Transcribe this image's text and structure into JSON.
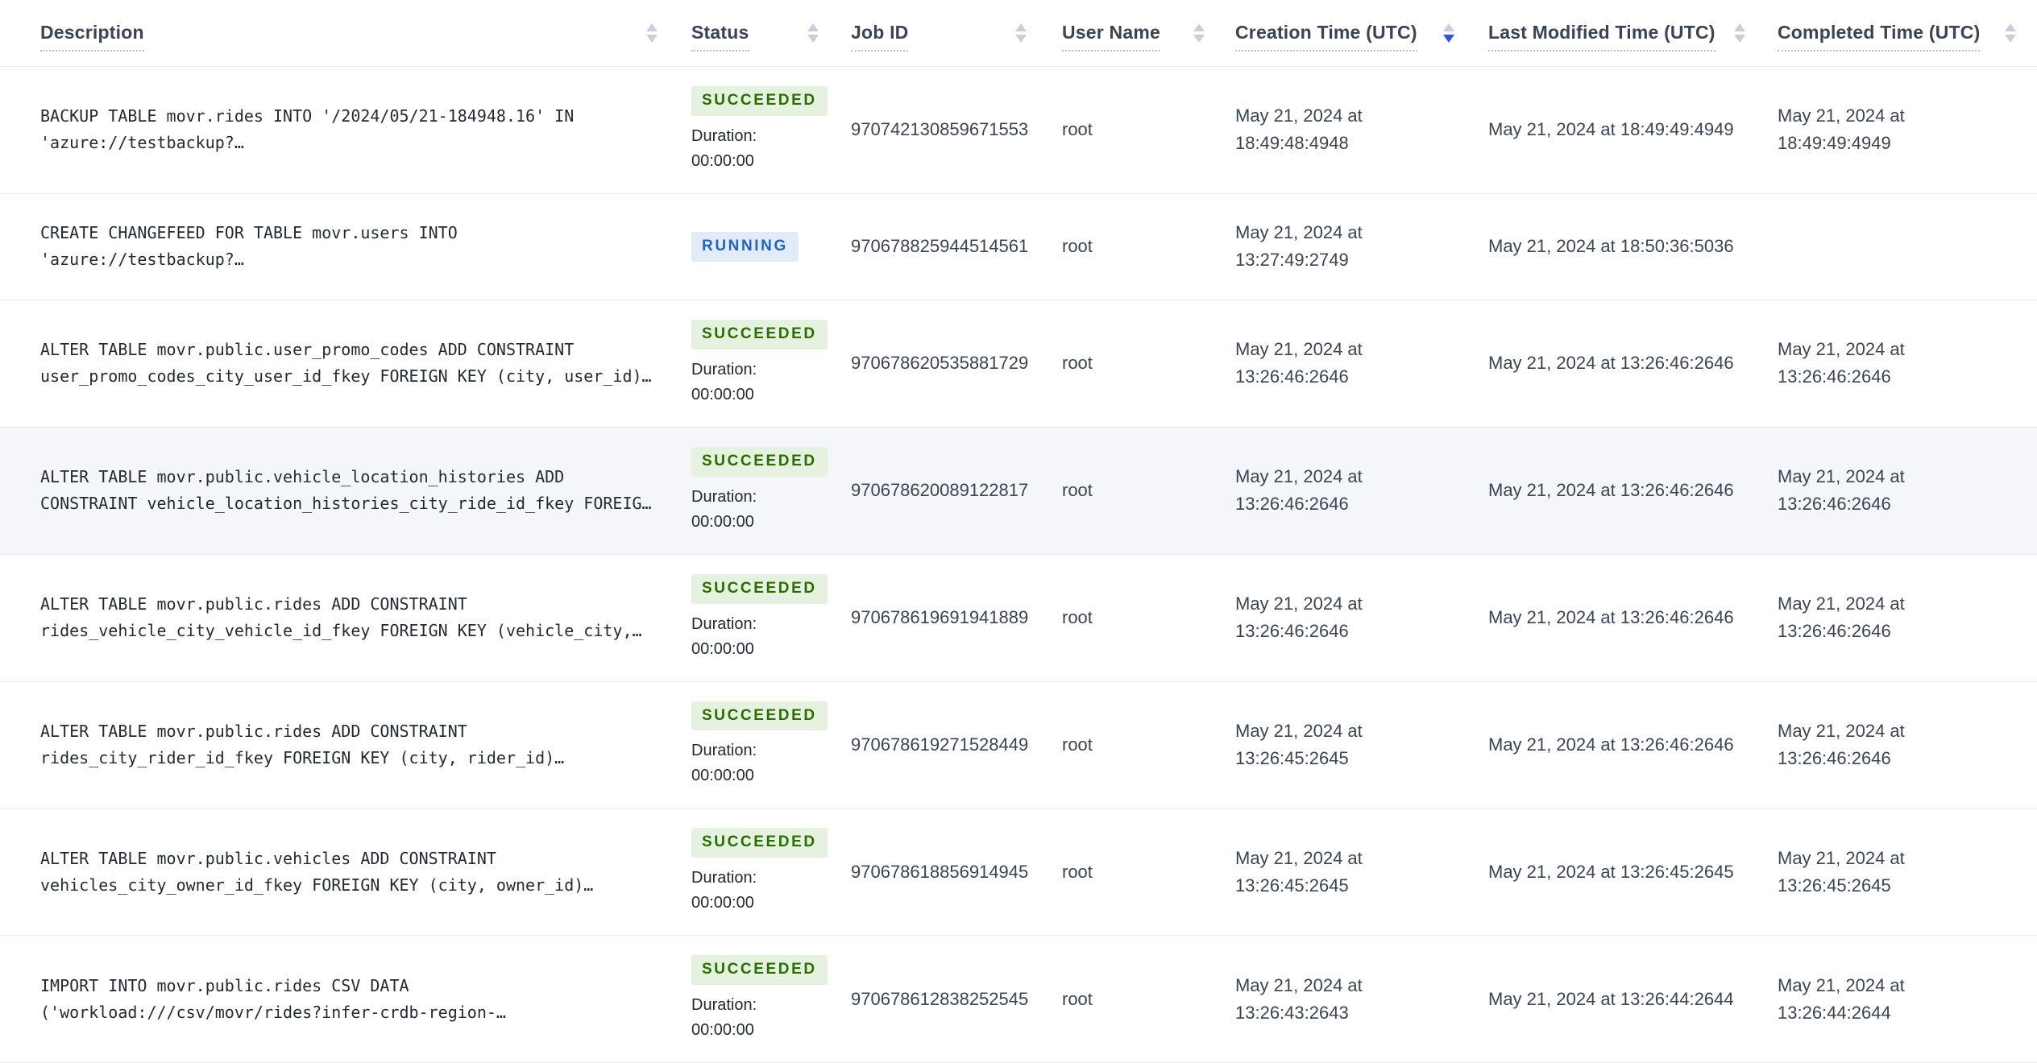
{
  "table": {
    "columns": [
      {
        "label": "Description",
        "sort": "none"
      },
      {
        "label": "Status",
        "sort": "none"
      },
      {
        "label": "Job ID",
        "sort": "none"
      },
      {
        "label": "User Name",
        "sort": "none"
      },
      {
        "label": "Creation Time (UTC)",
        "sort": "desc"
      },
      {
        "label": "Last Modified Time (UTC)",
        "sort": "none"
      },
      {
        "label": "Completed Time (UTC)",
        "sort": "none"
      }
    ],
    "rows": [
      {
        "description": "BACKUP TABLE movr.rides INTO '/2024/05/21-184948.16' IN 'azure://testbackup?…",
        "status": "SUCCEEDED",
        "duration_label": "Duration:",
        "duration_value": "00:00:00",
        "job_id": "970742130859671553",
        "user_name": "root",
        "creation_time": "May 21, 2024 at 18:49:48:4948",
        "last_modified_time": "May 21, 2024 at 18:49:49:4949",
        "completed_time": "May 21, 2024 at 18:49:49:4949",
        "highlighted": false
      },
      {
        "description": "CREATE CHANGEFEED FOR TABLE movr.users INTO 'azure://testbackup?…",
        "status": "RUNNING",
        "duration_label": "",
        "duration_value": null,
        "job_id": "970678825944514561",
        "user_name": "root",
        "creation_time": "May 21, 2024 at 13:27:49:2749",
        "last_modified_time": "May 21, 2024 at 18:50:36:5036",
        "completed_time": "",
        "highlighted": false
      },
      {
        "description": "ALTER TABLE movr.public.user_promo_codes ADD CONSTRAINT user_promo_codes_city_user_id_fkey FOREIGN KEY (city, user_id)…",
        "status": "SUCCEEDED",
        "duration_label": "Duration:",
        "duration_value": "00:00:00",
        "job_id": "970678620535881729",
        "user_name": "root",
        "creation_time": "May 21, 2024 at 13:26:46:2646",
        "last_modified_time": "May 21, 2024 at 13:26:46:2646",
        "completed_time": "May 21, 2024 at 13:26:46:2646",
        "highlighted": false
      },
      {
        "description": "ALTER TABLE movr.public.vehicle_location_histories ADD CONSTRAINT vehicle_location_histories_city_ride_id_fkey FOREIG…",
        "status": "SUCCEEDED",
        "duration_label": "Duration:",
        "duration_value": "00:00:00",
        "job_id": "970678620089122817",
        "user_name": "root",
        "creation_time": "May 21, 2024 at 13:26:46:2646",
        "last_modified_time": "May 21, 2024 at 13:26:46:2646",
        "completed_time": "May 21, 2024 at 13:26:46:2646",
        "highlighted": true
      },
      {
        "description": "ALTER TABLE movr.public.rides ADD CONSTRAINT rides_vehicle_city_vehicle_id_fkey FOREIGN KEY (vehicle_city,…",
        "status": "SUCCEEDED",
        "duration_label": "Duration:",
        "duration_value": "00:00:00",
        "job_id": "970678619691941889",
        "user_name": "root",
        "creation_time": "May 21, 2024 at 13:26:46:2646",
        "last_modified_time": "May 21, 2024 at 13:26:46:2646",
        "completed_time": "May 21, 2024 at 13:26:46:2646",
        "highlighted": false
      },
      {
        "description": "ALTER TABLE movr.public.rides ADD CONSTRAINT rides_city_rider_id_fkey FOREIGN KEY (city, rider_id)…",
        "status": "SUCCEEDED",
        "duration_label": "Duration:",
        "duration_value": "00:00:00",
        "job_id": "970678619271528449",
        "user_name": "root",
        "creation_time": "May 21, 2024 at 13:26:45:2645",
        "last_modified_time": "May 21, 2024 at 13:26:46:2646",
        "completed_time": "May 21, 2024 at 13:26:46:2646",
        "highlighted": false
      },
      {
        "description": "ALTER TABLE movr.public.vehicles ADD CONSTRAINT vehicles_city_owner_id_fkey FOREIGN KEY (city, owner_id)…",
        "status": "SUCCEEDED",
        "duration_label": "Duration:",
        "duration_value": "00:00:00",
        "job_id": "970678618856914945",
        "user_name": "root",
        "creation_time": "May 21, 2024 at 13:26:45:2645",
        "last_modified_time": "May 21, 2024 at 13:26:45:2645",
        "completed_time": "May 21, 2024 at 13:26:45:2645",
        "highlighted": false
      },
      {
        "description": "IMPORT INTO movr.public.rides CSV DATA ('workload:///csv/movr/rides?infer-crdb-region-…",
        "status": "SUCCEEDED",
        "duration_label": "Duration:",
        "duration_value": "00:00:00",
        "job_id": "970678612838252545",
        "user_name": "root",
        "creation_time": "May 21, 2024 at 13:26:43:2643",
        "last_modified_time": "May 21, 2024 at 13:26:44:2644",
        "completed_time": "May 21, 2024 at 13:26:44:2644",
        "highlighted": false
      }
    ]
  },
  "colors": {
    "accent_blue": "#2e55e8",
    "sort_inactive": "#c7cfdc",
    "succeeded_bg": "#e5f2df",
    "succeeded_text": "#2b6e00",
    "running_bg": "#e2ecf9",
    "running_text": "#2264c5",
    "header_text": "#394455",
    "body_text": "#394455",
    "desc_text": "#242a35",
    "row_border": "#e7ecf3",
    "highlight_row_bg": "#f4f6fa"
  }
}
